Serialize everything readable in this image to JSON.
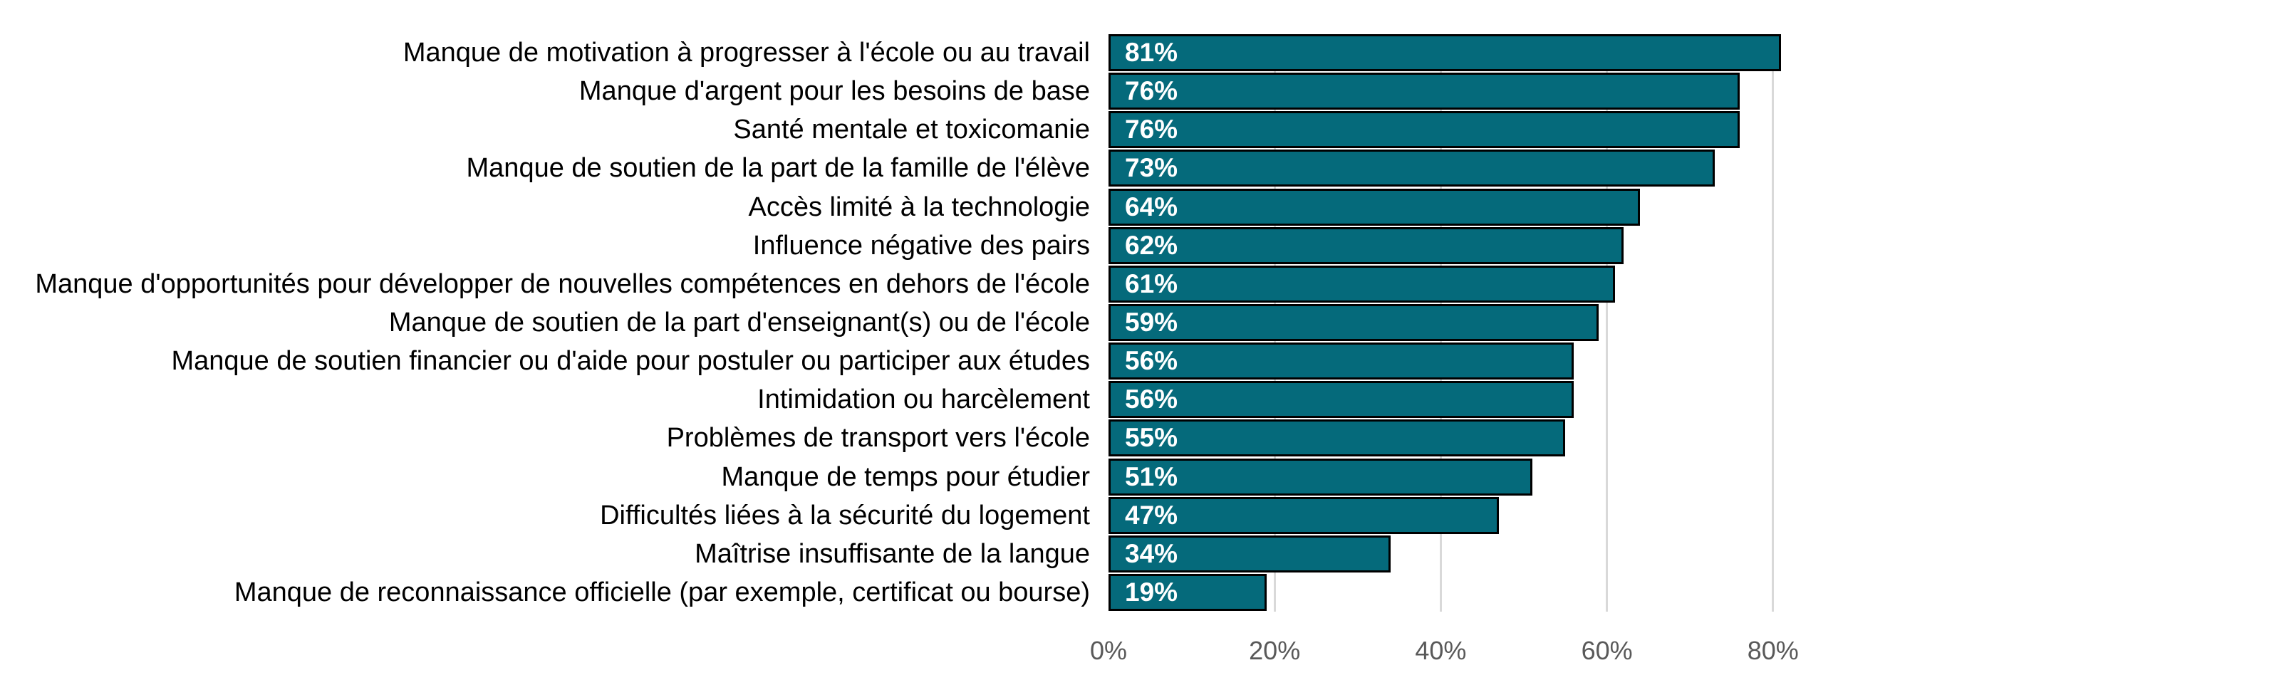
{
  "chart_data": {
    "type": "bar",
    "orientation": "horizontal",
    "title": "",
    "xlabel": "",
    "ylabel": "",
    "categories": [
      "Manque de motivation à progresser à l'école ou au travail",
      "Manque d'argent pour les besoins de base",
      "Santé mentale et toxicomanie",
      "Manque de soutien de la part de la famille de l'élève",
      "Accès limité à la technologie",
      "Influence négative des pairs",
      "Manque d'opportunités pour développer de nouvelles compétences en dehors de l'école",
      "Manque de soutien de la part d'enseignant(s) ou de l'école",
      "Manque de soutien financier ou d'aide pour postuler ou participer aux études",
      "Intimidation ou harcèlement",
      "Problèmes de transport vers l'école",
      "Manque de temps pour étudier",
      "Difficultés liées à la sécurité du logement",
      "Maîtrise insuffisante de la langue",
      "Manque de reconnaissance officielle (par exemple, certificat ou bourse)"
    ],
    "values": [
      81,
      76,
      76,
      73,
      64,
      62,
      61,
      59,
      56,
      56,
      55,
      51,
      47,
      34,
      19
    ],
    "value_labels": [
      "81%",
      "76%",
      "76%",
      "73%",
      "64%",
      "62%",
      "61%",
      "59%",
      "56%",
      "56%",
      "55%",
      "51%",
      "47%",
      "34%",
      "19%"
    ],
    "xlim": [
      0,
      100
    ],
    "x_ticks": [
      "0%",
      "20%",
      "40%",
      "60%",
      "80%"
    ],
    "x_tick_values": [
      0,
      20,
      40,
      60,
      80
    ],
    "grid": "vertical",
    "legend": "none",
    "colors": {
      "bar_fill": "#056A7B",
      "bar_border": "#000000",
      "gridline": "#D9D9D9",
      "axis_text": "#595959",
      "category_text": "#000000",
      "value_label_text": "#FFFFFF"
    }
  }
}
